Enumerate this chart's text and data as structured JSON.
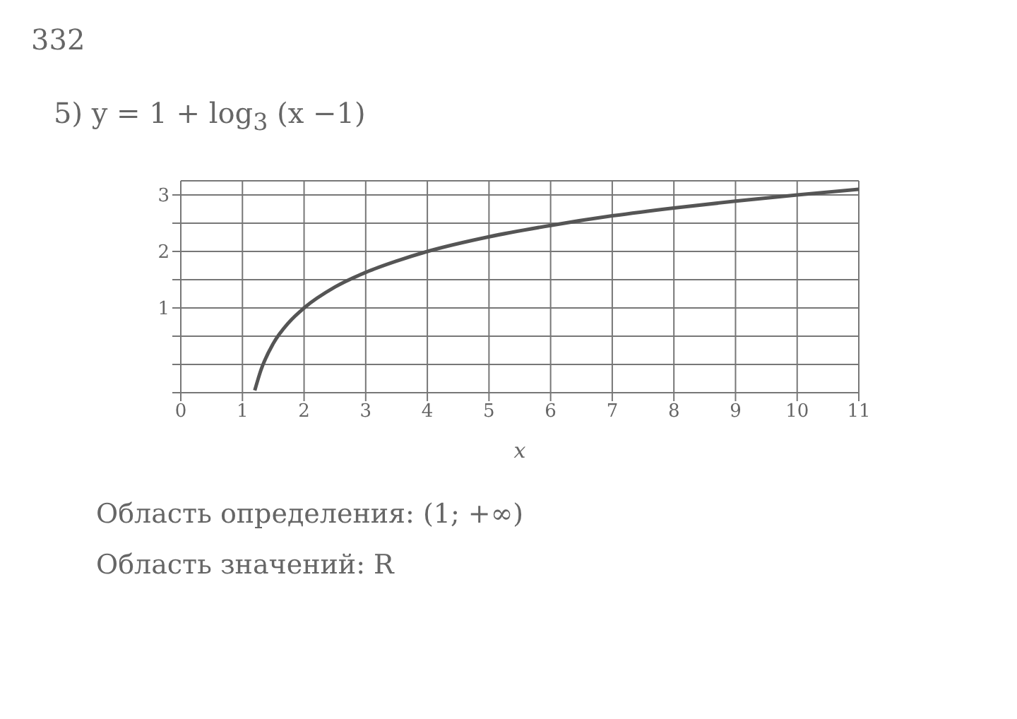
{
  "chart_data": {
    "type": "line",
    "title": "5) y = 1 + log$_{3}$ (x −1)",
    "xlabel": "x",
    "annotations": [
      "332",
      "Область определения: (1; +∞)",
      "Область значений: R"
    ],
    "x": [
      1.2,
      1.3,
      1.5,
      1.75,
      2,
      2.5,
      3,
      3.5,
      4,
      5,
      6,
      7,
      8,
      9,
      10,
      11
    ],
    "series": [
      {
        "color": "#555555",
        "values": [
          -0.46,
          -0.1,
          0.37,
          0.74,
          1,
          1.37,
          1.63,
          1.83,
          2,
          2.26,
          2.46,
          2.63,
          2.77,
          2.89,
          3,
          3.1
        ]
      }
    ],
    "xlim": [
      0,
      11
    ],
    "xticks": [
      0,
      1,
      2,
      3,
      4,
      5,
      6,
      7,
      8,
      9,
      10,
      11
    ],
    "ylim": [
      -0.5,
      3.25
    ],
    "yticks": [
      {
        "value": -0.5,
        "label": null
      },
      {
        "value": 0,
        "label": null
      },
      {
        "value": 0.5,
        "label": null
      },
      1,
      {
        "value": 1.5,
        "label": null
      },
      2,
      {
        "value": 2.5,
        "label": null
      },
      3
    ],
    "grid": true,
    "marker": "none",
    "line_style": "solid",
    "legend": false
  }
}
